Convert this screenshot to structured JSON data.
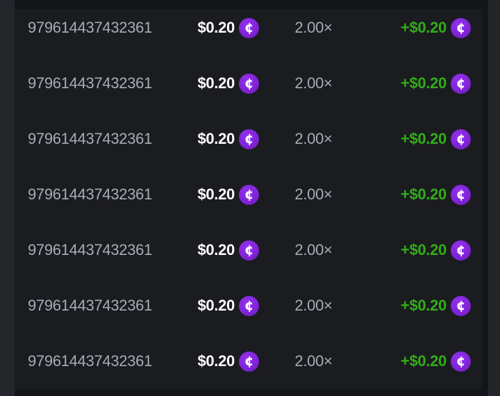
{
  "colors": {
    "page_bg": "#141519",
    "row_bg": "#1a1c20",
    "left_strip": "#24262b",
    "right_strip": "#23252a",
    "muted_text": "#a6adb8",
    "amount_text": "#ffffff",
    "win_green": "#32ad15",
    "coin_purple": "#8124d9"
  },
  "currency": {
    "icon": "cent-coin-icon",
    "glyph": "¢"
  },
  "bets_table": {
    "rows": [
      {
        "bet_id": "979614437432361",
        "bet_amount": "$0.20",
        "multiplier": "2.00×",
        "payout": "+$0.20"
      },
      {
        "bet_id": "979614437432361",
        "bet_amount": "$0.20",
        "multiplier": "2.00×",
        "payout": "+$0.20"
      },
      {
        "bet_id": "979614437432361",
        "bet_amount": "$0.20",
        "multiplier": "2.00×",
        "payout": "+$0.20"
      },
      {
        "bet_id": "979614437432361",
        "bet_amount": "$0.20",
        "multiplier": "2.00×",
        "payout": "+$0.20"
      },
      {
        "bet_id": "979614437432361",
        "bet_amount": "$0.20",
        "multiplier": "2.00×",
        "payout": "+$0.20"
      },
      {
        "bet_id": "979614437432361",
        "bet_amount": "$0.20",
        "multiplier": "2.00×",
        "payout": "+$0.20"
      },
      {
        "bet_id": "979614437432361",
        "bet_amount": "$0.20",
        "multiplier": "2.00×",
        "payout": "+$0.20"
      }
    ]
  }
}
